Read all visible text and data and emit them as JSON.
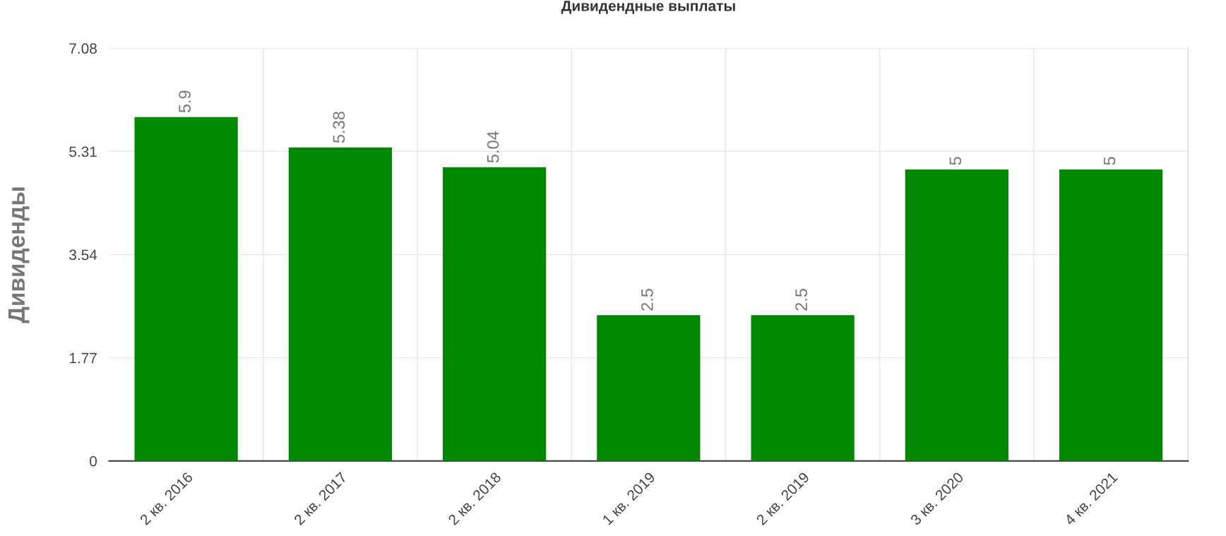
{
  "chart_data": {
    "type": "bar",
    "title": "Дивидендные выплаты",
    "ylabel": "Дивиденды",
    "categories": [
      "2 кв. 2016",
      "2 кв. 2017",
      "2 кв. 2018",
      "1 кв. 2019",
      "2 кв. 2019",
      "3 кв. 2020",
      "4 кв. 2021"
    ],
    "values": [
      5.9,
      5.38,
      5.04,
      2.5,
      2.5,
      5,
      5
    ],
    "data_labels": true,
    "color": "#008800",
    "ylim": [
      0,
      7.08
    ],
    "yticks": [
      0,
      1.77,
      3.54,
      5.31,
      7.08
    ],
    "grid": true,
    "legend": false
  }
}
